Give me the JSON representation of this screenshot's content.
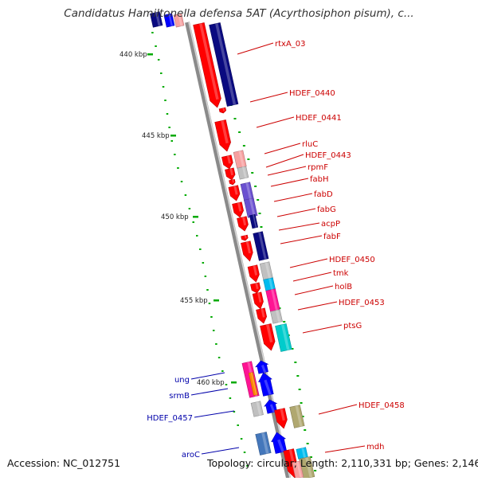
{
  "title": "Candidatus Hamiltonella defensa 5AT (Acyrthosiphon pisum), c...",
  "footer": {
    "accession": "Accession: NC_012751",
    "stats": "Topology: circular; Length: 2,110,331 bp; Genes: 2,146"
  },
  "ticks": [
    "440 kbp",
    "445 kbp",
    "450 kbp",
    "455 kbp",
    "460 kbp"
  ],
  "colors": {
    "red": "#ff0000",
    "navy": "#0a0a80",
    "blue": "#0000ff",
    "pink": "#f7a0a0",
    "gray": "#c0c0c0",
    "purple": "#6a50d0",
    "cyan": "#00bbee",
    "magenta": "#ff1493",
    "teal": "#00cccc",
    "olive": "#b0a870",
    "steel": "#4477bb",
    "orange": "#ff8800",
    "label_red": "#cc0000",
    "label_blue": "#0000aa",
    "tick_green": "#00aa00"
  },
  "gene_labels_right": [
    "rtxA_03",
    "HDEF_0440",
    "HDEF_0441",
    "rluC",
    "HDEF_0443",
    "rpmF",
    "fabH",
    "fabD",
    "fabG",
    "acpP",
    "fabF",
    "HDEF_0450",
    "tmk",
    "holB",
    "HDEF_0453",
    "ptsG",
    "HDEF_0458",
    "mdh"
  ],
  "gene_labels_left": [
    "ung",
    "srmB",
    "HDEF_0457",
    "aroC"
  ]
}
